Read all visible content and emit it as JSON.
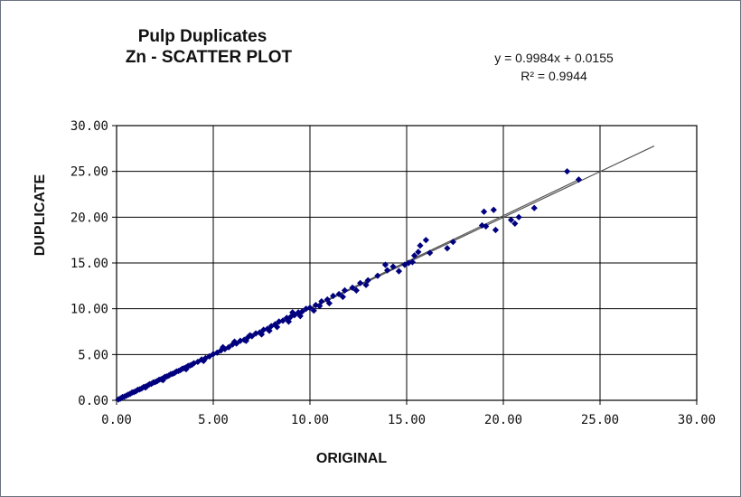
{
  "chart_data": {
    "type": "scatter",
    "title_line1": "Pulp Duplicates",
    "title_line2": "Zn -  SCATTER PLOT",
    "xlabel": "ORIGINAL",
    "ylabel": "DUPLICATE",
    "xlim": [
      0,
      30
    ],
    "ylim": [
      0,
      30
    ],
    "grid": true,
    "x_ticks": [
      "0.00",
      "5.00",
      "10.00",
      "15.00",
      "20.00",
      "25.00",
      "30.00"
    ],
    "y_ticks": [
      "0.00",
      "5.00",
      "10.00",
      "15.00",
      "20.00",
      "25.00",
      "30.00"
    ],
    "equation": "y = 0.9984x + 0.0155",
    "r_squared": "R² = 0.9944",
    "trendline": {
      "slope": 0.9984,
      "intercept": 0.0155,
      "color": "#555555"
    },
    "series": [
      {
        "marker": "diamond",
        "color": "#00007f",
        "points": [
          [
            0.1,
            0.1
          ],
          [
            0.2,
            0.2
          ],
          [
            0.3,
            0.35
          ],
          [
            0.4,
            0.4
          ],
          [
            0.5,
            0.5
          ],
          [
            0.6,
            0.62
          ],
          [
            0.7,
            0.7
          ],
          [
            0.8,
            0.85
          ],
          [
            0.9,
            0.9
          ],
          [
            1.0,
            1.0
          ],
          [
            1.1,
            1.15
          ],
          [
            1.2,
            1.2
          ],
          [
            1.3,
            1.3
          ],
          [
            1.4,
            1.45
          ],
          [
            1.5,
            1.5
          ],
          [
            1.6,
            1.6
          ],
          [
            1.7,
            1.75
          ],
          [
            1.8,
            1.8
          ],
          [
            1.9,
            1.95
          ],
          [
            2.0,
            2.0
          ],
          [
            2.1,
            2.1
          ],
          [
            2.2,
            2.25
          ],
          [
            2.3,
            2.3
          ],
          [
            2.4,
            2.4
          ],
          [
            2.5,
            2.55
          ],
          [
            2.6,
            2.6
          ],
          [
            2.7,
            2.7
          ],
          [
            2.8,
            2.85
          ],
          [
            2.9,
            2.9
          ],
          [
            3.0,
            3.0
          ],
          [
            3.1,
            3.15
          ],
          [
            3.2,
            3.2
          ],
          [
            3.3,
            3.3
          ],
          [
            3.4,
            3.45
          ],
          [
            3.5,
            3.5
          ],
          [
            3.6,
            3.6
          ],
          [
            3.7,
            3.75
          ],
          [
            3.8,
            3.8
          ],
          [
            3.9,
            3.9
          ],
          [
            4.0,
            4.05
          ],
          [
            4.2,
            4.2
          ],
          [
            4.4,
            4.45
          ],
          [
            4.6,
            4.6
          ],
          [
            4.8,
            4.8
          ],
          [
            5.0,
            5.05
          ],
          [
            5.2,
            5.2
          ],
          [
            5.4,
            5.45
          ],
          [
            5.6,
            5.6
          ],
          [
            5.8,
            5.8
          ],
          [
            6.0,
            6.1
          ],
          [
            6.2,
            6.2
          ],
          [
            6.4,
            6.5
          ],
          [
            6.6,
            6.6
          ],
          [
            6.8,
            6.9
          ],
          [
            7.0,
            7.0
          ],
          [
            7.2,
            7.3
          ],
          [
            7.4,
            7.4
          ],
          [
            7.6,
            7.7
          ],
          [
            7.8,
            7.8
          ],
          [
            8.0,
            8.1
          ],
          [
            8.2,
            8.3
          ],
          [
            8.4,
            8.6
          ],
          [
            8.6,
            8.7
          ],
          [
            8.8,
            9.0
          ],
          [
            9.0,
            9.1
          ],
          [
            9.2,
            9.3
          ],
          [
            9.4,
            9.6
          ],
          [
            9.6,
            9.7
          ],
          [
            9.8,
            10.0
          ],
          [
            10.0,
            10.1
          ],
          [
            10.3,
            10.4
          ],
          [
            10.6,
            10.8
          ],
          [
            10.9,
            11.0
          ],
          [
            11.2,
            11.4
          ],
          [
            11.5,
            11.6
          ],
          [
            11.8,
            12.0
          ],
          [
            12.2,
            12.3
          ],
          [
            12.6,
            12.8
          ],
          [
            13.0,
            13.1
          ],
          [
            13.5,
            13.6
          ],
          [
            5.5,
            5.8
          ],
          [
            6.1,
            6.4
          ],
          [
            6.9,
            7.1
          ],
          [
            7.5,
            7.2
          ],
          [
            8.3,
            8.0
          ],
          [
            9.1,
            9.6
          ],
          [
            10.2,
            9.8
          ],
          [
            11.0,
            10.6
          ],
          [
            12.4,
            12.0
          ],
          [
            11.7,
            11.3
          ],
          [
            3.6,
            3.4
          ],
          [
            4.5,
            4.3
          ],
          [
            2.4,
            2.2
          ],
          [
            1.5,
            1.4
          ],
          [
            6.7,
            6.5
          ],
          [
            8.9,
            8.6
          ],
          [
            10.5,
            10.3
          ],
          [
            12.9,
            12.6
          ],
          [
            9.5,
            9.2
          ],
          [
            7.9,
            7.6
          ],
          [
            13.9,
            14.8
          ],
          [
            14.3,
            14.6
          ],
          [
            14.6,
            14.1
          ],
          [
            14.9,
            14.8
          ],
          [
            15.1,
            15.0
          ],
          [
            15.4,
            15.8
          ],
          [
            15.6,
            16.2
          ],
          [
            15.7,
            16.9
          ],
          [
            16.0,
            17.5
          ],
          [
            16.2,
            16.1
          ],
          [
            14.0,
            14.2
          ],
          [
            15.3,
            15.1
          ],
          [
            17.1,
            16.6
          ],
          [
            17.4,
            17.3
          ],
          [
            18.9,
            19.1
          ],
          [
            19.0,
            20.6
          ],
          [
            19.1,
            19.0
          ],
          [
            19.5,
            20.8
          ],
          [
            19.6,
            18.6
          ],
          [
            20.4,
            19.7
          ],
          [
            20.6,
            19.3
          ],
          [
            20.8,
            20.0
          ],
          [
            21.6,
            21.0
          ],
          [
            23.3,
            25.0
          ],
          [
            23.9,
            24.1
          ]
        ]
      }
    ]
  }
}
